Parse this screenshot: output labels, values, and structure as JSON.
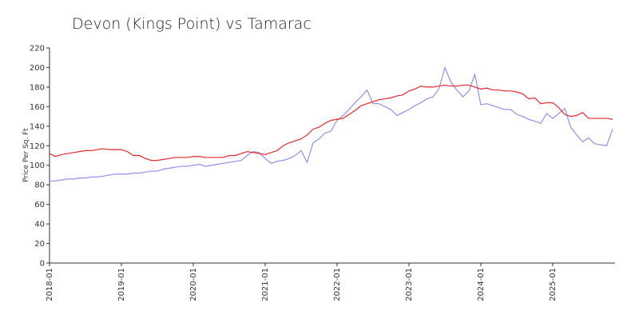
{
  "chart_data": {
    "type": "line",
    "title": "Devon (Kings Point) vs Tamarac",
    "y_label": "Price Per Sq. Ft",
    "x": [
      "2018-01",
      "2018-02",
      "2018-03",
      "2018-04",
      "2018-05",
      "2018-06",
      "2018-07",
      "2018-08",
      "2018-09",
      "2018-10",
      "2018-11",
      "2018-12",
      "2019-01",
      "2019-02",
      "2019-03",
      "2019-04",
      "2019-05",
      "2019-06",
      "2019-07",
      "2019-08",
      "2019-09",
      "2019-10",
      "2019-11",
      "2019-12",
      "2020-01",
      "2020-02",
      "2020-03",
      "2020-04",
      "2020-05",
      "2020-06",
      "2020-07",
      "2020-08",
      "2020-09",
      "2020-10",
      "2020-11",
      "2020-12",
      "2021-01",
      "2021-02",
      "2021-03",
      "2021-04",
      "2021-05",
      "2021-06",
      "2021-07",
      "2021-08",
      "2021-09",
      "2021-10",
      "2021-11",
      "2021-12",
      "2022-01",
      "2022-02",
      "2022-03",
      "2022-04",
      "2022-05",
      "2022-06",
      "2022-07",
      "2022-08",
      "2022-09",
      "2022-10",
      "2022-11",
      "2022-12",
      "2023-01",
      "2023-02",
      "2023-03",
      "2023-04",
      "2023-05",
      "2023-06",
      "2023-07",
      "2023-08",
      "2023-09",
      "2023-10",
      "2023-11",
      "2023-12",
      "2024-01",
      "2024-02",
      "2024-03",
      "2024-04",
      "2024-05",
      "2024-06",
      "2024-07",
      "2024-08",
      "2024-09",
      "2024-10",
      "2024-11",
      "2024-12",
      "2025-01",
      "2025-02",
      "2025-03",
      "2025-04",
      "2025-05",
      "2025-06",
      "2025-07",
      "2025-08",
      "2025-09",
      "2025-10",
      "2025-11"
    ],
    "series": [
      {
        "color": "#e8262b",
        "values": [
          112,
          109,
          111,
          112,
          113,
          114,
          115,
          115,
          116,
          117,
          116,
          116,
          116,
          114,
          110,
          110,
          107,
          105,
          105,
          106,
          107,
          108,
          108,
          108,
          109,
          109,
          108,
          108,
          108,
          108,
          110,
          110,
          112,
          114,
          113,
          112,
          111,
          113,
          115,
          120,
          123,
          125,
          127,
          131,
          137,
          139,
          143,
          146,
          147,
          148,
          152,
          156,
          161,
          163,
          165,
          167,
          168,
          169,
          171,
          172,
          176,
          178,
          181,
          180,
          180,
          181,
          182,
          181,
          181,
          182,
          182,
          180,
          178,
          179,
          177,
          177,
          176,
          176,
          175,
          173,
          168,
          169,
          163,
          164,
          164,
          159,
          152,
          150,
          151,
          154,
          148,
          148,
          148,
          148,
          147
        ]
      },
      {
        "color": "#8f8ff0",
        "values": [
          84,
          84,
          85,
          86,
          86,
          87,
          87,
          88,
          88,
          89,
          90,
          91,
          91,
          91,
          92,
          92,
          93,
          94,
          94,
          96,
          97,
          98,
          99,
          99,
          100,
          101,
          99,
          100,
          101,
          102,
          103,
          104,
          105,
          110,
          114,
          113,
          107,
          102,
          104,
          105,
          107,
          110,
          115,
          103,
          123,
          127,
          133,
          135,
          146,
          151,
          157,
          164,
          170,
          177,
          163,
          163,
          160,
          157,
          151,
          154,
          157,
          161,
          164,
          168,
          170,
          178,
          200,
          185,
          177,
          170,
          176,
          193,
          162,
          163,
          161,
          159,
          157,
          157,
          152,
          150,
          147,
          145,
          143,
          153,
          148,
          153,
          158,
          139,
          131,
          124,
          128,
          122,
          121,
          120,
          137
        ]
      }
    ],
    "xticks": [
      "2018-01",
      "2019-01",
      "2020-01",
      "2021-01",
      "2022-01",
      "2023-01",
      "2024-01",
      "2025-01"
    ],
    "ylim": [
      0,
      220
    ],
    "yticks": [
      0,
      20,
      40,
      60,
      80,
      100,
      120,
      140,
      160,
      180,
      200,
      220
    ]
  }
}
